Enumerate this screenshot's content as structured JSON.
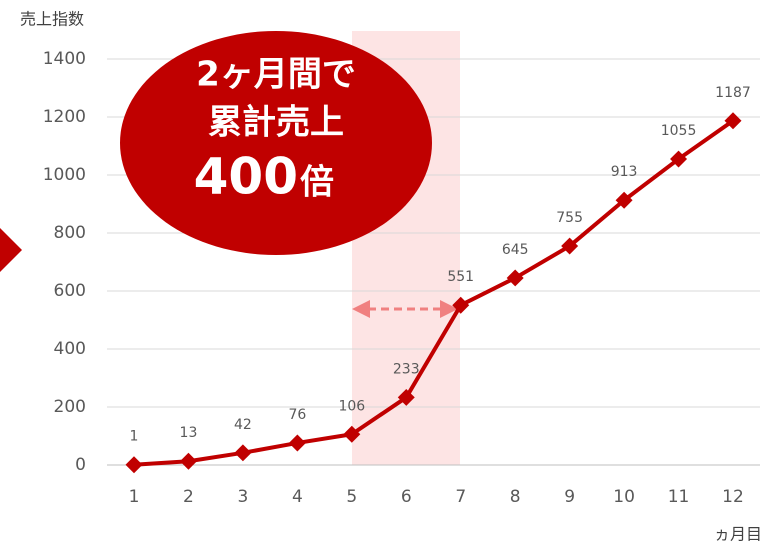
{
  "chart_data": {
    "type": "line",
    "y_axis_label": "売上指数",
    "x_axis_label": "ヵ月目",
    "categories": [
      "1",
      "2",
      "3",
      "4",
      "5",
      "6",
      "7",
      "8",
      "9",
      "10",
      "11",
      "12"
    ],
    "series": [
      {
        "name": "売上指数",
        "color": "#c00000",
        "values": [
          1,
          13,
          42,
          76,
          106,
          233,
          551,
          645,
          755,
          913,
          1055,
          1187
        ]
      }
    ],
    "ylim": [
      0,
      1400
    ],
    "yticks": [
      0,
      200,
      400,
      600,
      800,
      1000,
      1200,
      1400
    ],
    "grid": true,
    "annotations": [
      "2ヶ月間で",
      "累計売上",
      "400",
      "倍"
    ]
  }
}
